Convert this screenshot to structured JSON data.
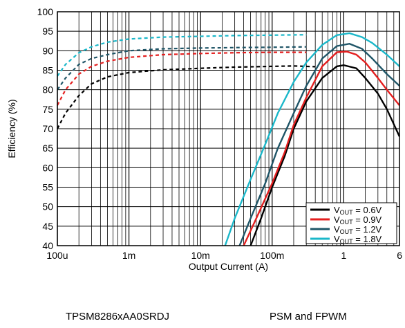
{
  "chart_data": {
    "type": "line",
    "xscale": "log",
    "xlim": [
      0.0001,
      6
    ],
    "ylim": [
      40,
      100
    ],
    "xlabel": "Output Current (A)",
    "ylabel": "Efficiency (%)",
    "x_tick_labels": [
      {
        "value": 0.0001,
        "label": "100u"
      },
      {
        "value": 0.001,
        "label": "1m"
      },
      {
        "value": 0.01,
        "label": "10m"
      },
      {
        "value": 0.1,
        "label": "100m"
      },
      {
        "value": 1,
        "label": "1"
      },
      {
        "value": 6,
        "label": "6"
      }
    ],
    "y_ticks": [
      40,
      45,
      50,
      55,
      60,
      65,
      70,
      75,
      80,
      85,
      90,
      95,
      100
    ],
    "grid": true,
    "legend_position": "bottom-right",
    "footer_left": "TPSM8286xAA0SRDJ",
    "footer_right": "PSM and FPWM",
    "series": [
      {
        "name": "V",
        "name_sub": "OUT",
        "name_value": " = 0.6V",
        "color": "#000000",
        "psm": [
          [
            0.0001,
            70
          ],
          [
            0.00013,
            74
          ],
          [
            0.0002,
            78.5
          ],
          [
            0.0003,
            81.5
          ],
          [
            0.0005,
            83.3
          ],
          [
            0.001,
            84.4
          ],
          [
            0.003,
            85.1
          ],
          [
            0.01,
            85.5
          ],
          [
            0.03,
            85.8
          ],
          [
            0.1,
            86.0
          ],
          [
            0.2,
            86.1
          ],
          [
            0.4,
            85.9
          ]
        ],
        "fpwm": [
          [
            0.05,
            40
          ],
          [
            0.07,
            47
          ],
          [
            0.1,
            55
          ],
          [
            0.15,
            63
          ],
          [
            0.2,
            70
          ],
          [
            0.3,
            77
          ],
          [
            0.5,
            83
          ],
          [
            0.8,
            86
          ],
          [
            1,
            86.3
          ],
          [
            1.5,
            85.5
          ],
          [
            2,
            83
          ],
          [
            3,
            79
          ],
          [
            4,
            75
          ],
          [
            6,
            68
          ]
        ]
      },
      {
        "name": "V",
        "name_sub": "OUT",
        "name_value": " = 0.9V",
        "color": "#e41f1f",
        "psm": [
          [
            0.0001,
            76
          ],
          [
            0.00013,
            80
          ],
          [
            0.0002,
            84
          ],
          [
            0.0003,
            86
          ],
          [
            0.0005,
            87.3
          ],
          [
            0.001,
            88.3
          ],
          [
            0.003,
            89
          ],
          [
            0.01,
            89.3
          ],
          [
            0.03,
            89.5
          ],
          [
            0.1,
            89.6
          ],
          [
            0.3,
            89.6
          ]
        ],
        "fpwm": [
          [
            0.04,
            40
          ],
          [
            0.06,
            47
          ],
          [
            0.1,
            56
          ],
          [
            0.15,
            64
          ],
          [
            0.2,
            71
          ],
          [
            0.3,
            78
          ],
          [
            0.5,
            86
          ],
          [
            0.8,
            89.6
          ],
          [
            1.1,
            89.8
          ],
          [
            1.5,
            89
          ],
          [
            2,
            87
          ],
          [
            3,
            83
          ],
          [
            4,
            80
          ],
          [
            6,
            76
          ]
        ]
      },
      {
        "name": "V",
        "name_sub": "OUT",
        "name_value": " = 1.2V",
        "color": "#1f5567",
        "psm": [
          [
            0.0001,
            80
          ],
          [
            0.00013,
            83
          ],
          [
            0.0002,
            86.5
          ],
          [
            0.0003,
            88
          ],
          [
            0.0005,
            89
          ],
          [
            0.001,
            90
          ],
          [
            0.003,
            90.5
          ],
          [
            0.01,
            90.7
          ],
          [
            0.03,
            90.8
          ],
          [
            0.1,
            90.9
          ],
          [
            0.3,
            91
          ]
        ],
        "fpwm": [
          [
            0.035,
            40
          ],
          [
            0.05,
            47
          ],
          [
            0.08,
            56
          ],
          [
            0.12,
            65
          ],
          [
            0.2,
            74
          ],
          [
            0.3,
            81
          ],
          [
            0.5,
            88
          ],
          [
            0.8,
            91.2
          ],
          [
            1.2,
            91.8
          ],
          [
            1.8,
            90.5
          ],
          [
            2.5,
            88
          ],
          [
            4,
            84
          ],
          [
            6,
            81
          ]
        ]
      },
      {
        "name": "V",
        "name_sub": "OUT",
        "name_value": " = 1.8V",
        "color": "#1ab7c9",
        "psm": [
          [
            0.0001,
            83.5
          ],
          [
            0.00013,
            86.5
          ],
          [
            0.0002,
            89.5
          ],
          [
            0.0003,
            91
          ],
          [
            0.0005,
            92.2
          ],
          [
            0.001,
            93
          ],
          [
            0.003,
            93.5
          ],
          [
            0.01,
            93.7
          ],
          [
            0.03,
            93.9
          ],
          [
            0.1,
            94
          ],
          [
            0.3,
            94.1
          ]
        ],
        "fpwm": [
          [
            0.022,
            40
          ],
          [
            0.03,
            47
          ],
          [
            0.05,
            57
          ],
          [
            0.08,
            66
          ],
          [
            0.12,
            74
          ],
          [
            0.2,
            82
          ],
          [
            0.3,
            87
          ],
          [
            0.5,
            91.5
          ],
          [
            0.8,
            94
          ],
          [
            1.2,
            94.5
          ],
          [
            1.8,
            93.5
          ],
          [
            2.5,
            92
          ],
          [
            4,
            89
          ],
          [
            6,
            86
          ]
        ]
      }
    ]
  }
}
